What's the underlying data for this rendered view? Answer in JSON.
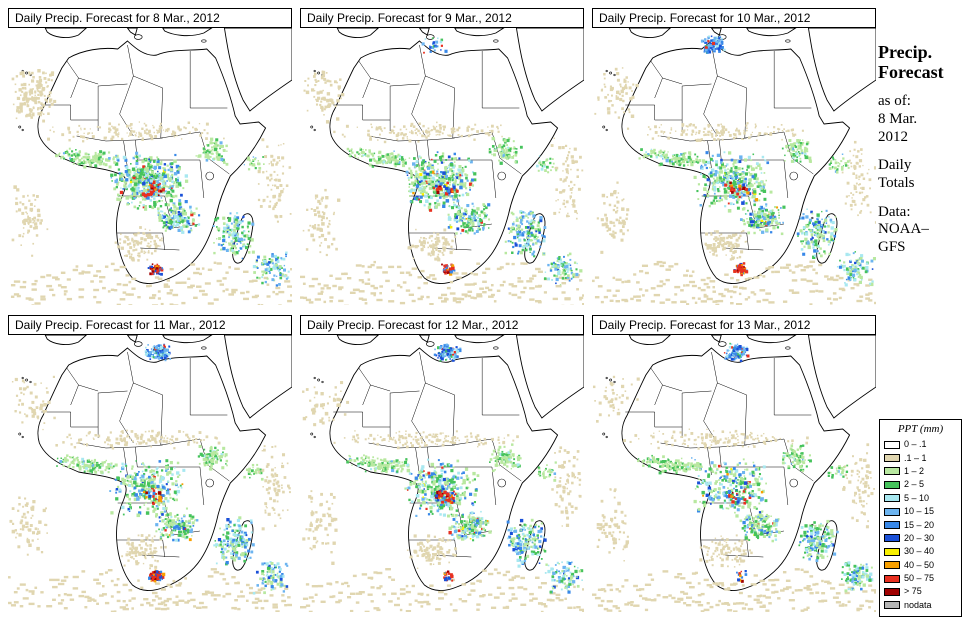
{
  "panels": [
    {
      "title": "Daily Precip. Forecast for  8 Mar., 2012"
    },
    {
      "title": "Daily Precip. Forecast for  9 Mar., 2012"
    },
    {
      "title": "Daily Precip. Forecast for  10 Mar., 2012"
    },
    {
      "title": "Daily Precip. Forecast for  11 Mar., 2012"
    },
    {
      "title": "Daily Precip. Forecast for  12 Mar., 2012"
    },
    {
      "title": "Daily Precip. Forecast for  13 Mar., 2012"
    }
  ],
  "sidebar": {
    "title_line1": "Precip.",
    "title_line2": "Forecast",
    "as_of_label": "as of:",
    "as_of_date_line1": "8 Mar.",
    "as_of_date_line2": "2012",
    "totals_line1": "Daily",
    "totals_line2": "Totals",
    "data_label": "Data:",
    "data_source_line1": "NOAA–",
    "data_source_line2": "GFS"
  },
  "legend": {
    "title": "PPT (mm)",
    "items": [
      {
        "label": "0 – .1",
        "color": "#ffffff"
      },
      {
        "label": ".1 – 1",
        "color": "#e0d6b0"
      },
      {
        "label": "1 – 2",
        "color": "#b8e8a0"
      },
      {
        "label": "2 – 5",
        "color": "#46c35c"
      },
      {
        "label": "5 – 10",
        "color": "#a8e8f0"
      },
      {
        "label": "10 – 15",
        "color": "#6cb4f0"
      },
      {
        "label": "15 – 20",
        "color": "#3888e8"
      },
      {
        "label": "20 – 30",
        "color": "#1a50d8"
      },
      {
        "label": "30 – 40",
        "color": "#f8f000"
      },
      {
        "label": "40 – 50",
        "color": "#f8a000"
      },
      {
        "label": "50 – 75",
        "color": "#e83020"
      },
      {
        "label": "> 75",
        "color": "#a00000"
      },
      {
        "label": "nodata",
        "color": "#b4b4b4"
      }
    ]
  }
}
